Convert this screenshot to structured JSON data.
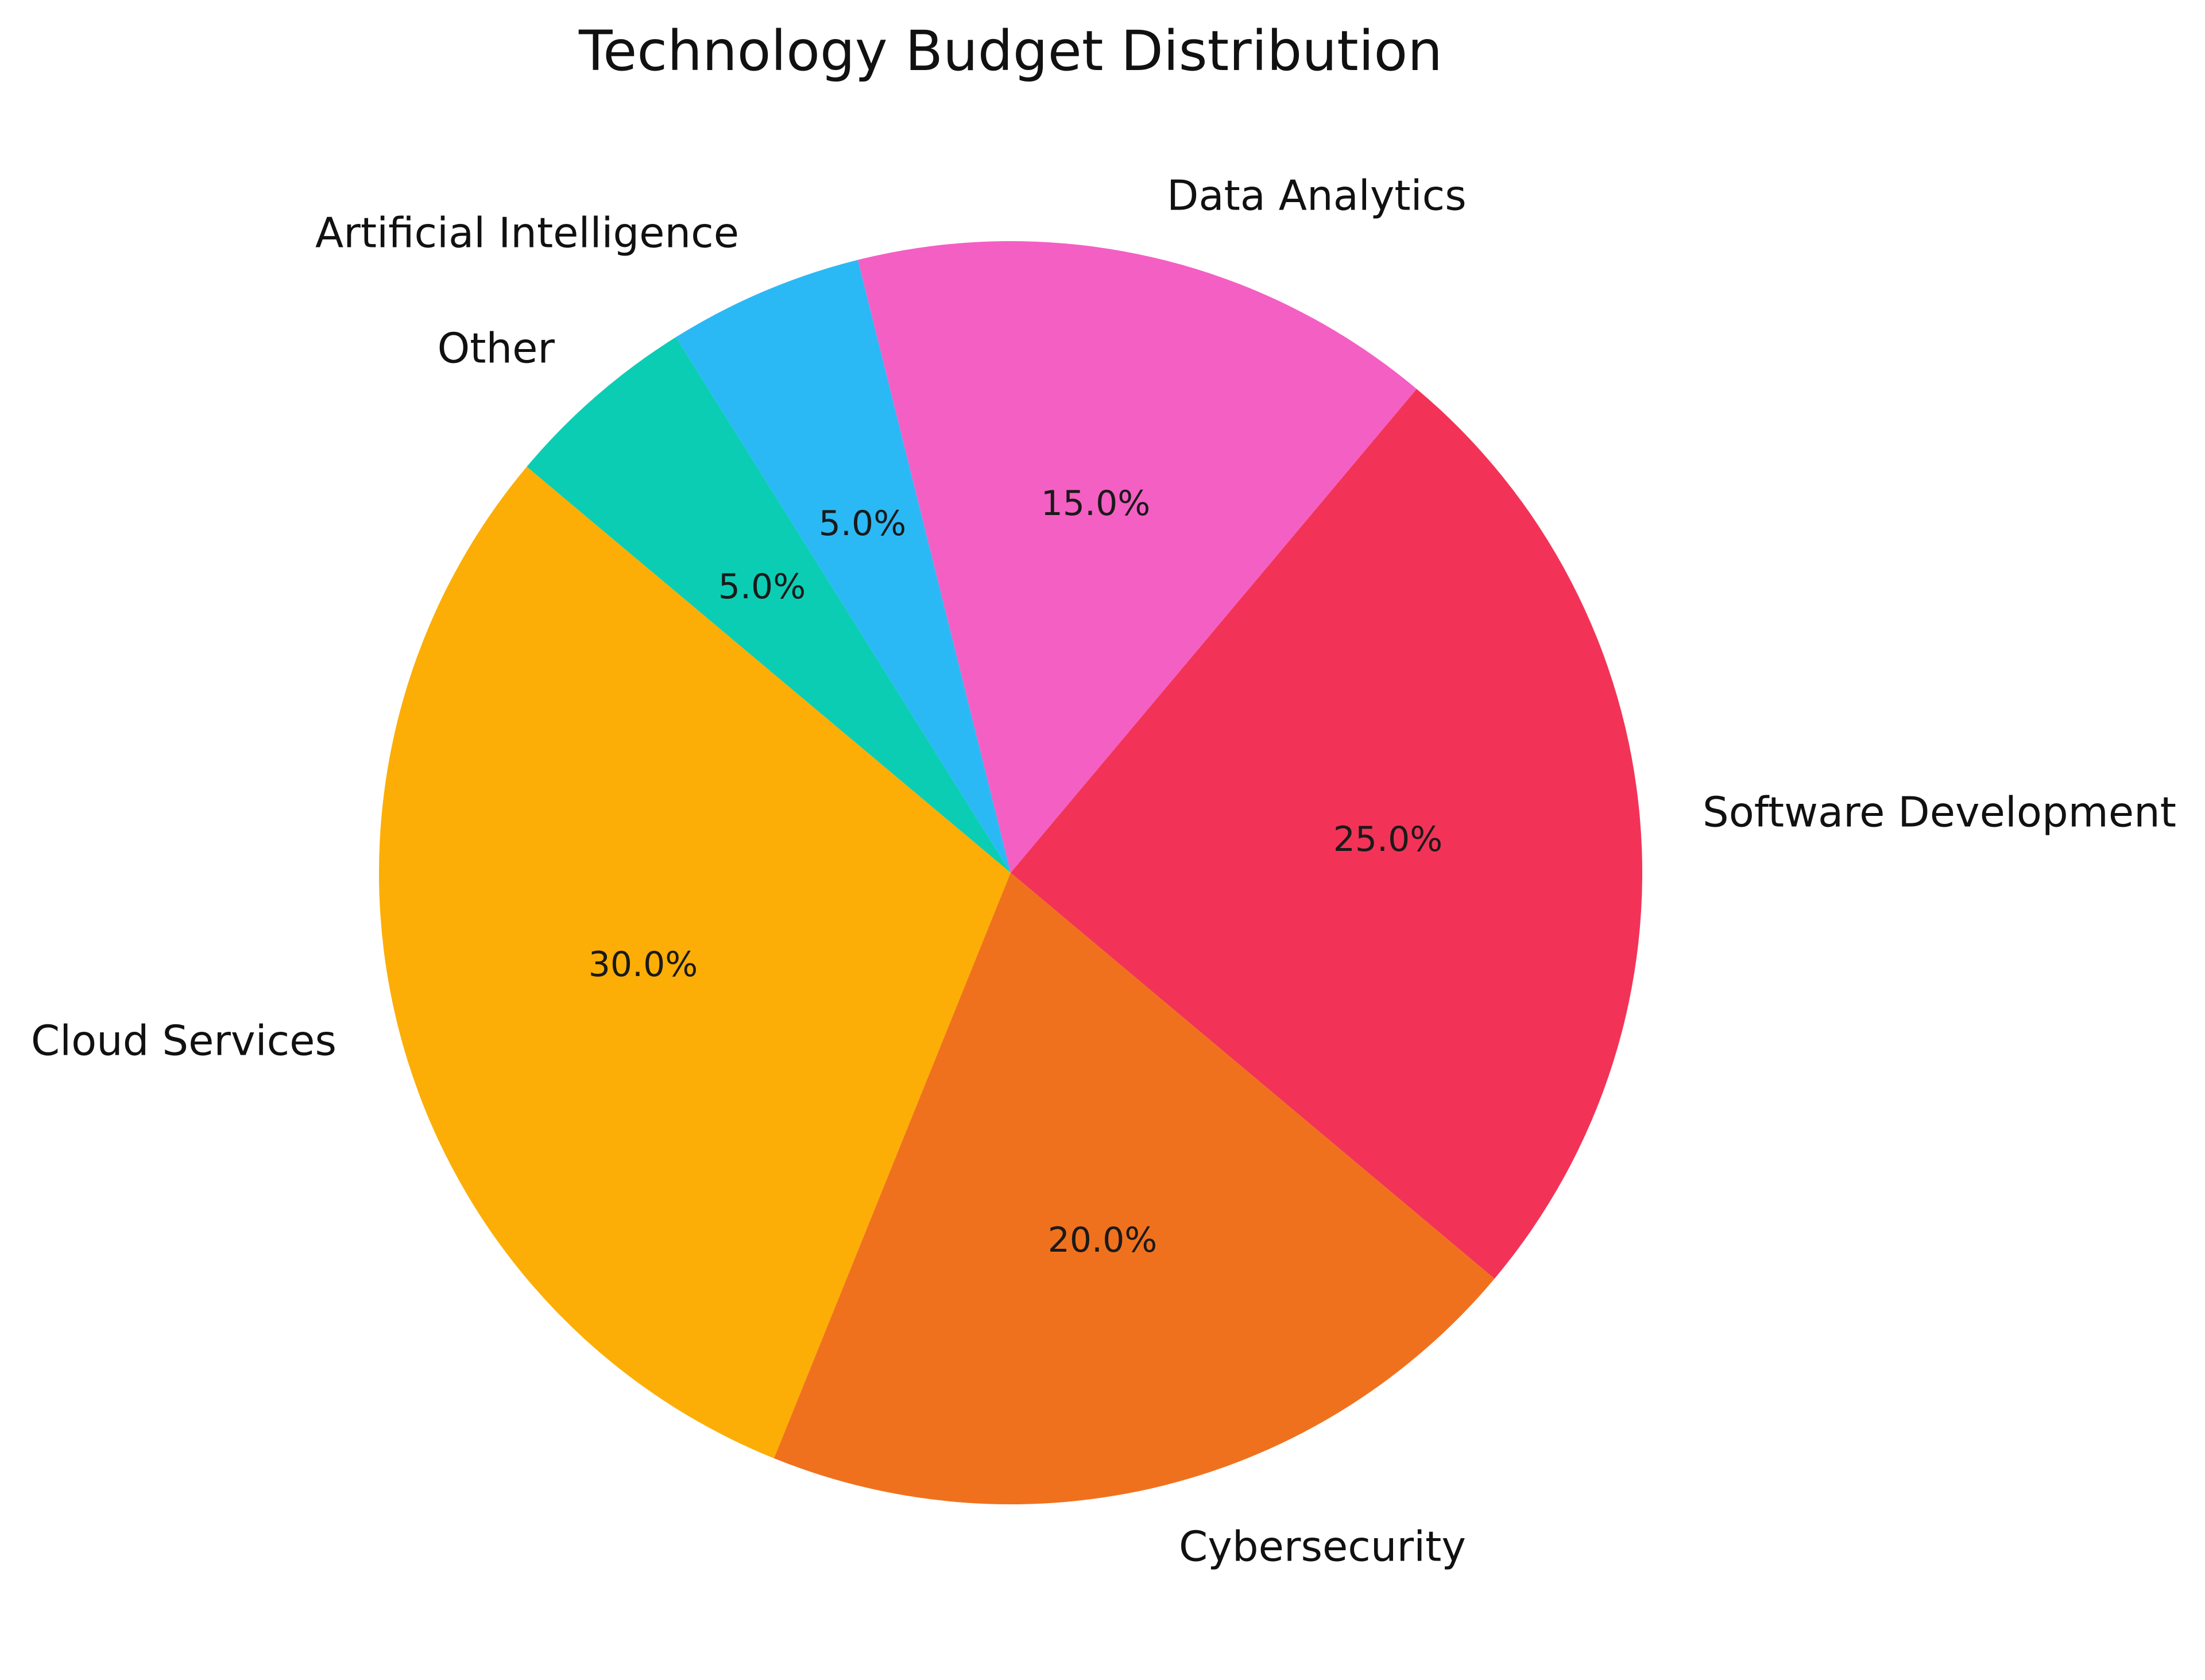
{
  "figure": {
    "title": "Technology Budget Distribution",
    "background_color": "#ffffff",
    "text_color": "#111111"
  },
  "chart_data": {
    "type": "pie",
    "title": "Technology Budget Distribution",
    "unit": "percent",
    "legend": false,
    "gridlines": false,
    "start_angle_deg": -40,
    "direction": "counterclockwise",
    "categories": [
      "Software Development",
      "Data Analytics",
      "Artificial Intelligence",
      "Other",
      "Cloud Services",
      "Cybersecurity"
    ],
    "values": [
      25.0,
      15.0,
      5.0,
      5.0,
      30.0,
      20.0
    ],
    "slices": [
      {
        "label": "Software Development",
        "value": 25.0,
        "pct_label": "25.0%",
        "color": "#F23357"
      },
      {
        "label": "Data Analytics",
        "value": 15.0,
        "pct_label": "15.0%",
        "color": "#F45FC3"
      },
      {
        "label": "Artificial Intelligence",
        "value": 5.0,
        "pct_label": "5.0%",
        "color": "#2BB9F5"
      },
      {
        "label": "Other",
        "value": 5.0,
        "pct_label": "5.0%",
        "color": "#0BCDB4"
      },
      {
        "label": "Cloud Services",
        "value": 30.0,
        "pct_label": "30.0%",
        "color": "#FCAE06"
      },
      {
        "label": "Cybersecurity",
        "value": 20.0,
        "pct_label": "20.0%",
        "color": "#F0711D"
      }
    ]
  }
}
